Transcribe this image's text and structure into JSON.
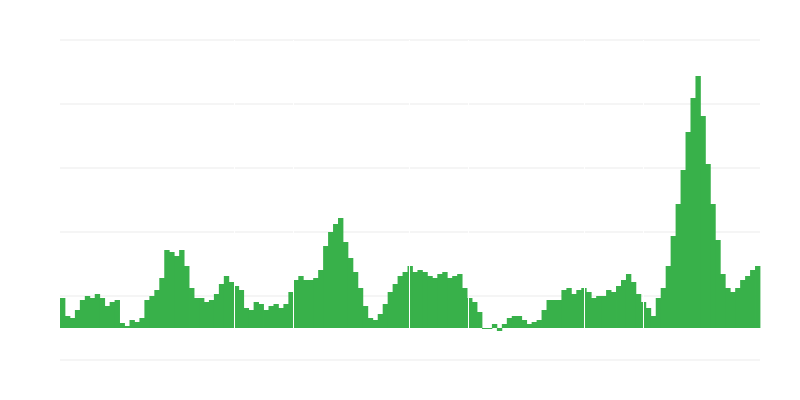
{
  "chart_data": {
    "type": "bar",
    "title": "",
    "xlabel": "",
    "ylabel": "",
    "ylim": [
      -32,
      288
    ],
    "grid": true,
    "gridlines": [
      -32,
      32,
      96,
      160,
      224,
      288
    ],
    "bar_color": "#38b14a",
    "grid_color": "#ebebeb",
    "values": [
      30,
      12,
      10,
      18,
      28,
      32,
      30,
      34,
      30,
      22,
      26,
      28,
      5,
      2,
      8,
      6,
      10,
      28,
      32,
      38,
      50,
      78,
      76,
      72,
      78,
      62,
      40,
      30,
      30,
      26,
      28,
      34,
      44,
      52,
      46,
      42,
      38,
      20,
      18,
      26,
      24,
      18,
      22,
      24,
      20,
      24,
      36,
      48,
      52,
      48,
      48,
      50,
      58,
      82,
      96,
      104,
      110,
      86,
      70,
      56,
      40,
      22,
      10,
      8,
      14,
      24,
      36,
      44,
      52,
      56,
      62,
      56,
      58,
      56,
      52,
      50,
      54,
      56,
      50,
      52,
      54,
      40,
      30,
      26,
      16,
      0,
      -1,
      4,
      -3,
      4,
      10,
      12,
      12,
      8,
      4,
      6,
      8,
      18,
      28,
      28,
      28,
      38,
      40,
      34,
      38,
      40,
      36,
      30,
      32,
      32,
      38,
      36,
      42,
      48,
      54,
      46,
      34,
      26,
      20,
      12,
      30,
      40,
      62,
      92,
      124,
      158,
      196,
      230,
      252,
      212,
      164,
      124,
      88,
      54,
      40,
      36,
      40,
      48,
      52,
      58,
      62
    ]
  }
}
